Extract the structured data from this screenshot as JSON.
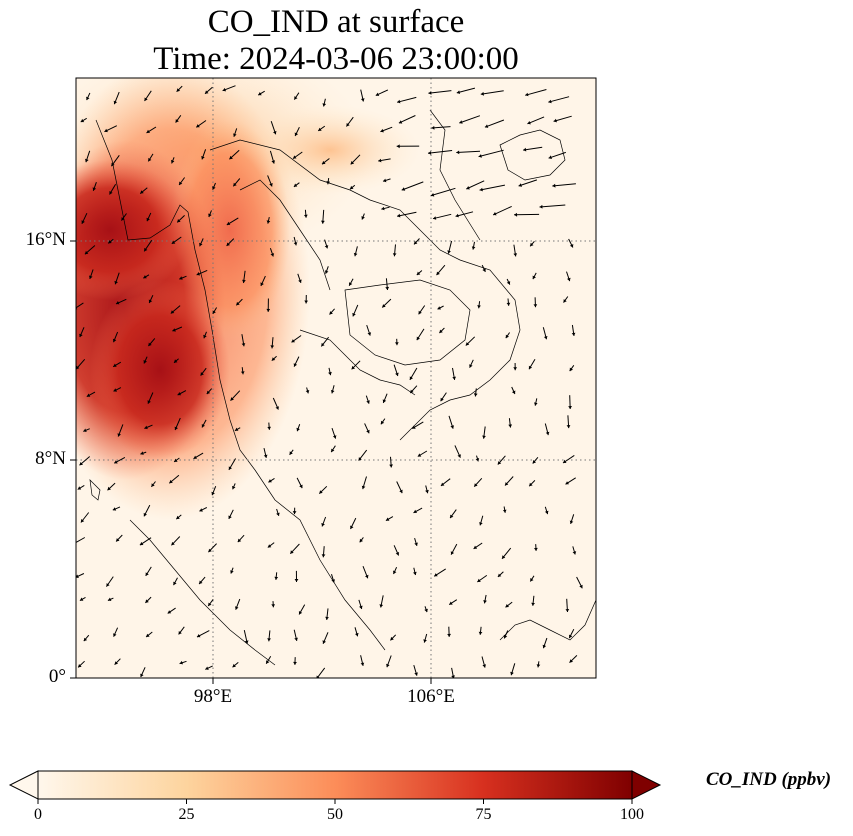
{
  "title": {
    "line1": "CO_IND at surface",
    "line2": "Time: 2024-03-06 23:00:00"
  },
  "map": {
    "lon_range": [
      93,
      112
    ],
    "lat_range": [
      0,
      22
    ],
    "lat_ticks": [
      {
        "value": 16,
        "label": "16°N"
      },
      {
        "value": 8,
        "label": "8°N"
      },
      {
        "value": 0,
        "label": "0°"
      }
    ],
    "lon_ticks": [
      {
        "value": 98,
        "label": "98°E"
      },
      {
        "value": 106,
        "label": "106°E"
      }
    ],
    "gridlines": "dotted",
    "field": "CO_IND",
    "high_concentration_region": "Andaman Sea / Gulf of Martaban / southern Myanmar",
    "overlay": "wind vectors"
  },
  "colorbar": {
    "label": "CO_IND (ppbv)",
    "min": 0,
    "max": 100,
    "extend": "both",
    "colormap": "OrRd",
    "ticks": [
      "0",
      "25",
      "50",
      "75",
      "100"
    ],
    "colors": [
      "#fff7ec",
      "#fdd49e",
      "#fc8d59",
      "#d7301f",
      "#7f0000"
    ]
  }
}
